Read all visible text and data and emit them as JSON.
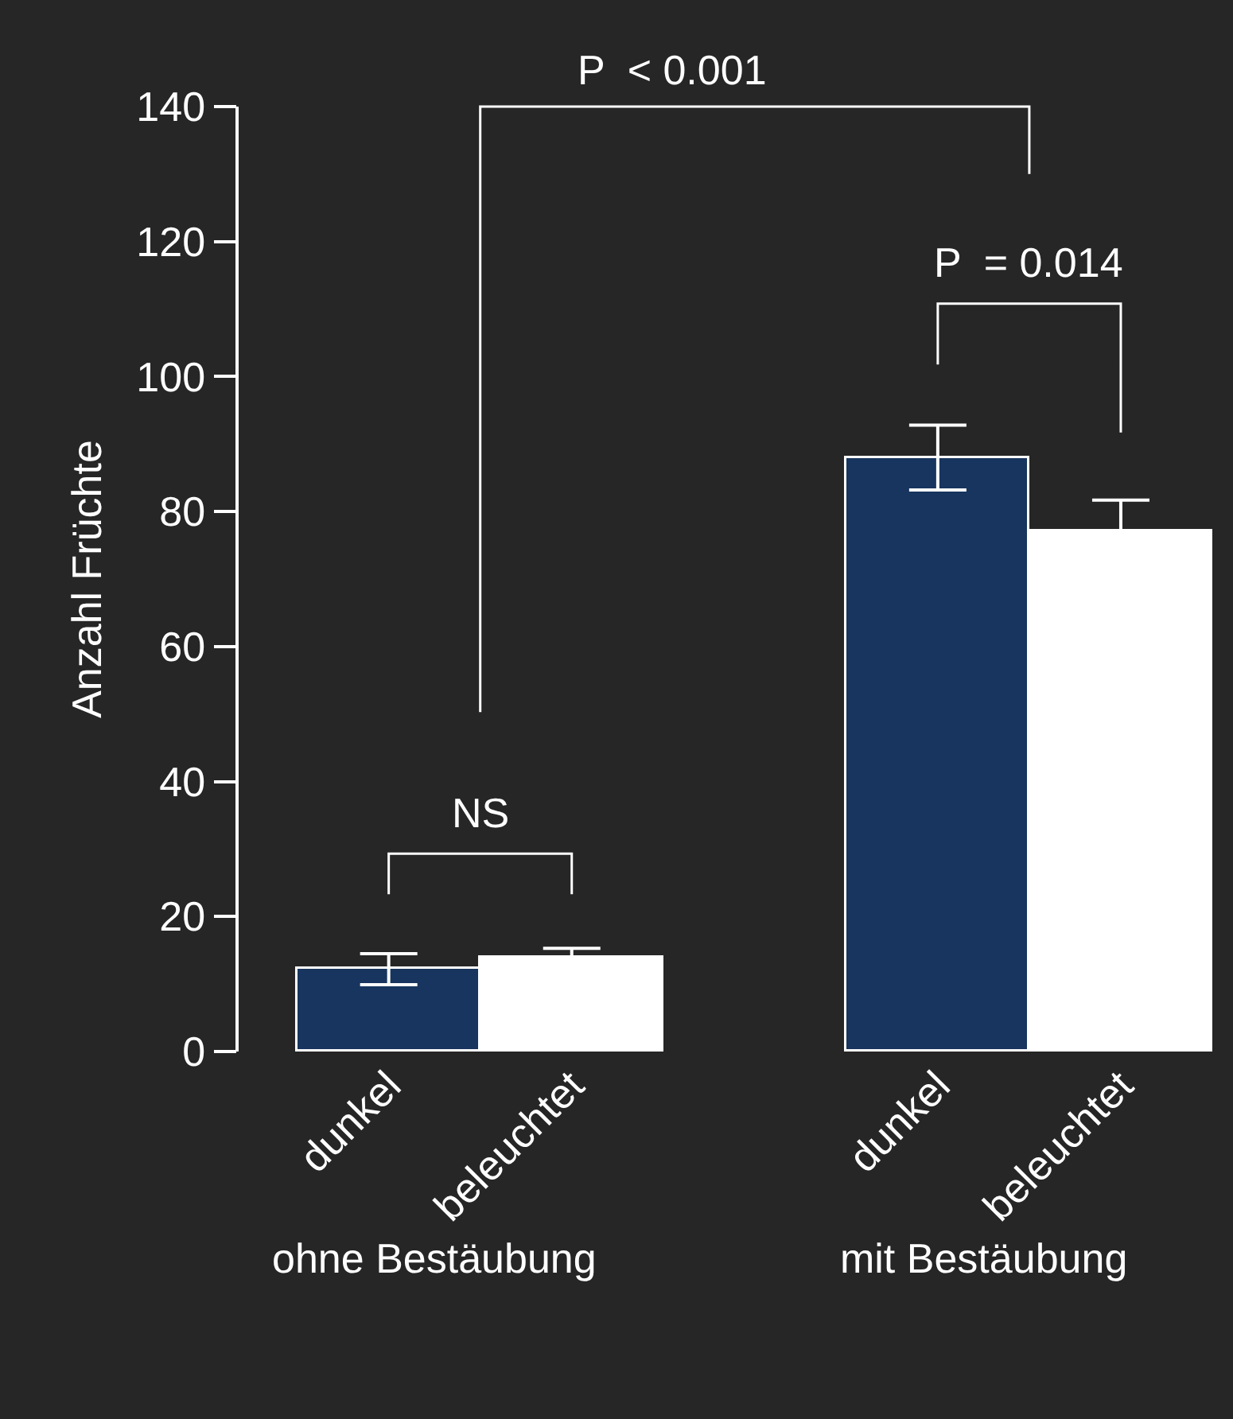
{
  "chart_data": {
    "type": "bar",
    "ylabel": "Anzahl Früchte",
    "categories": [
      "dunkel",
      "beleuchtet",
      null,
      "dunkel",
      "beleuchtet"
    ],
    "values": [
      12.2,
      13.8,
      null,
      88,
      77
    ],
    "errors": [
      2.3,
      1.5,
      null,
      4.8,
      4.7
    ],
    "colors": [
      "#17355e",
      "#ffffff",
      "#ffffff",
      "#17355e",
      "#ffffff"
    ],
    "ylim": [
      0,
      140
    ],
    "yticks": [
      0,
      20,
      40,
      60,
      80,
      100,
      120,
      140
    ],
    "grid": false,
    "annotations": [
      "NS",
      "P  = 0.014",
      "P  < 0.001",
      "ohne Bestäubung",
      "mit Bestäubung"
    ]
  }
}
